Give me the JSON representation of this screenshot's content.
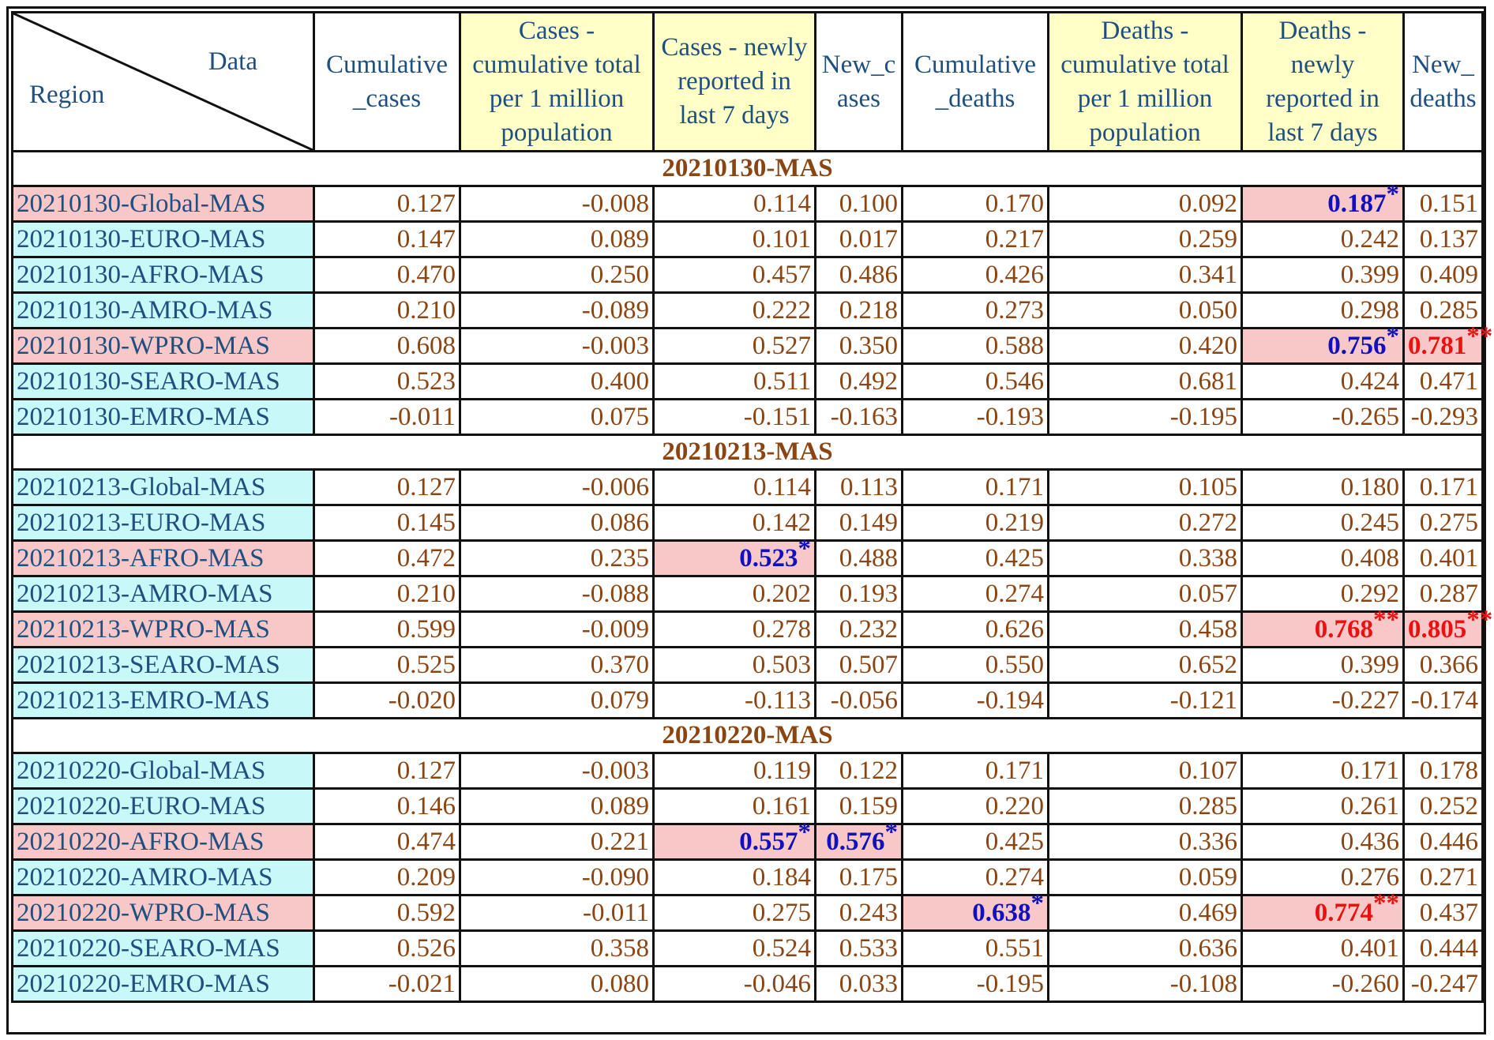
{
  "header": {
    "diag_data": "Data",
    "diag_region": "Region",
    "columns": [
      "Cumulative _cases",
      "Cases - cumulative total per 1 million population",
      "Cases - newly reported in last 7 days",
      "New_c ases",
      "Cumulative _deaths",
      "Deaths - cumulative total per 1 million population",
      "Deaths - newly reported in last 7 days",
      "New_ deaths"
    ]
  },
  "sections": [
    {
      "title": "20210130-MAS",
      "rows": [
        {
          "region": "20210130-Global-MAS",
          "hl": true,
          "values": [
            "0.127",
            "-0.008",
            "0.114",
            "0.100",
            "0.170",
            "0.092",
            "0.187",
            "0.151"
          ],
          "marks": [
            null,
            null,
            null,
            null,
            null,
            null,
            "*",
            null
          ]
        },
        {
          "region": "20210130-EURO-MAS",
          "hl": false,
          "values": [
            "0.147",
            "0.089",
            "0.101",
            "0.017",
            "0.217",
            "0.259",
            "0.242",
            "0.137"
          ],
          "marks": [
            null,
            null,
            null,
            null,
            null,
            null,
            null,
            null
          ]
        },
        {
          "region": "20210130-AFRO-MAS",
          "hl": false,
          "values": [
            "0.470",
            "0.250",
            "0.457",
            "0.486",
            "0.426",
            "0.341",
            "0.399",
            "0.409"
          ],
          "marks": [
            null,
            null,
            null,
            null,
            null,
            null,
            null,
            null
          ]
        },
        {
          "region": "20210130-AMRO-MAS",
          "hl": false,
          "values": [
            "0.210",
            "-0.089",
            "0.222",
            "0.218",
            "0.273",
            "0.050",
            "0.298",
            "0.285"
          ],
          "marks": [
            null,
            null,
            null,
            null,
            null,
            null,
            null,
            null
          ]
        },
        {
          "region": "20210130-WPRO-MAS",
          "hl": true,
          "values": [
            "0.608",
            "-0.003",
            "0.527",
            "0.350",
            "0.588",
            "0.420",
            "0.756",
            "0.781"
          ],
          "marks": [
            null,
            null,
            null,
            null,
            null,
            null,
            "*",
            "**"
          ]
        },
        {
          "region": "20210130-SEARO-MAS",
          "hl": false,
          "values": [
            "0.523",
            "0.400",
            "0.511",
            "0.492",
            "0.546",
            "0.681",
            "0.424",
            "0.471"
          ],
          "marks": [
            null,
            null,
            null,
            null,
            null,
            null,
            null,
            null
          ]
        },
        {
          "region": "20210130-EMRO-MAS",
          "hl": false,
          "values": [
            "-0.011",
            "0.075",
            "-0.151",
            "-0.163",
            "-0.193",
            "-0.195",
            "-0.265",
            "-0.293"
          ],
          "marks": [
            null,
            null,
            null,
            null,
            null,
            null,
            null,
            null
          ]
        }
      ]
    },
    {
      "title": "20210213-MAS",
      "rows": [
        {
          "region": "20210213-Global-MAS",
          "hl": false,
          "values": [
            "0.127",
            "-0.006",
            "0.114",
            "0.113",
            "0.171",
            "0.105",
            "0.180",
            "0.171"
          ],
          "marks": [
            null,
            null,
            null,
            null,
            null,
            null,
            null,
            null
          ]
        },
        {
          "region": "20210213-EURO-MAS",
          "hl": false,
          "values": [
            "0.145",
            "0.086",
            "0.142",
            "0.149",
            "0.219",
            "0.272",
            "0.245",
            "0.275"
          ],
          "marks": [
            null,
            null,
            null,
            null,
            null,
            null,
            null,
            null
          ]
        },
        {
          "region": "20210213-AFRO-MAS",
          "hl": true,
          "values": [
            "0.472",
            "0.235",
            "0.523",
            "0.488",
            "0.425",
            "0.338",
            "0.408",
            "0.401"
          ],
          "marks": [
            null,
            null,
            "*",
            null,
            null,
            null,
            null,
            null
          ]
        },
        {
          "region": "20210213-AMRO-MAS",
          "hl": false,
          "values": [
            "0.210",
            "-0.088",
            "0.202",
            "0.193",
            "0.274",
            "0.057",
            "0.292",
            "0.287"
          ],
          "marks": [
            null,
            null,
            null,
            null,
            null,
            null,
            null,
            null
          ]
        },
        {
          "region": "20210213-WPRO-MAS",
          "hl": true,
          "values": [
            "0.599",
            "-0.009",
            "0.278",
            "0.232",
            "0.626",
            "0.458",
            "0.768",
            "0.805"
          ],
          "marks": [
            null,
            null,
            null,
            null,
            null,
            null,
            "**",
            "**"
          ]
        },
        {
          "region": "20210213-SEARO-MAS",
          "hl": false,
          "values": [
            "0.525",
            "0.370",
            "0.503",
            "0.507",
            "0.550",
            "0.652",
            "0.399",
            "0.366"
          ],
          "marks": [
            null,
            null,
            null,
            null,
            null,
            null,
            null,
            null
          ]
        },
        {
          "region": "20210213-EMRO-MAS",
          "hl": false,
          "values": [
            "-0.020",
            "0.079",
            "-0.113",
            "-0.056",
            "-0.194",
            "-0.121",
            "-0.227",
            "-0.174"
          ],
          "marks": [
            null,
            null,
            null,
            null,
            null,
            null,
            null,
            null
          ]
        }
      ]
    },
    {
      "title": "20210220-MAS",
      "rows": [
        {
          "region": "20210220-Global-MAS",
          "hl": false,
          "values": [
            "0.127",
            "-0.003",
            "0.119",
            "0.122",
            "0.171",
            "0.107",
            "0.171",
            "0.178"
          ],
          "marks": [
            null,
            null,
            null,
            null,
            null,
            null,
            null,
            null
          ]
        },
        {
          "region": "20210220-EURO-MAS",
          "hl": false,
          "values": [
            "0.146",
            "0.089",
            "0.161",
            "0.159",
            "0.220",
            "0.285",
            "0.261",
            "0.252"
          ],
          "marks": [
            null,
            null,
            null,
            null,
            null,
            null,
            null,
            null
          ]
        },
        {
          "region": "20210220-AFRO-MAS",
          "hl": true,
          "values": [
            "0.474",
            "0.221",
            "0.557",
            "0.576",
            "0.425",
            "0.336",
            "0.436",
            "0.446"
          ],
          "marks": [
            null,
            null,
            "*",
            "*",
            null,
            null,
            null,
            null
          ]
        },
        {
          "region": "20210220-AMRO-MAS",
          "hl": false,
          "values": [
            "0.209",
            "-0.090",
            "0.184",
            "0.175",
            "0.274",
            "0.059",
            "0.276",
            "0.271"
          ],
          "marks": [
            null,
            null,
            null,
            null,
            null,
            null,
            null,
            null
          ]
        },
        {
          "region": "20210220-WPRO-MAS",
          "hl": true,
          "values": [
            "0.592",
            "-0.011",
            "0.275",
            "0.243",
            "0.638",
            "0.469",
            "0.774",
            "0.437"
          ],
          "marks": [
            null,
            null,
            null,
            null,
            "*",
            null,
            "**",
            null
          ]
        },
        {
          "region": "20210220-SEARO-MAS",
          "hl": false,
          "values": [
            "0.526",
            "0.358",
            "0.524",
            "0.533",
            "0.551",
            "0.636",
            "0.401",
            "0.444"
          ],
          "marks": [
            null,
            null,
            null,
            null,
            null,
            null,
            null,
            null
          ]
        },
        {
          "region": "20210220-EMRO-MAS",
          "hl": false,
          "values": [
            "-0.021",
            "0.080",
            "-0.046",
            "0.033",
            "-0.195",
            "-0.108",
            "-0.260",
            "-0.247"
          ],
          "marks": [
            null,
            null,
            null,
            null,
            null,
            null,
            null,
            null
          ]
        }
      ]
    }
  ]
}
